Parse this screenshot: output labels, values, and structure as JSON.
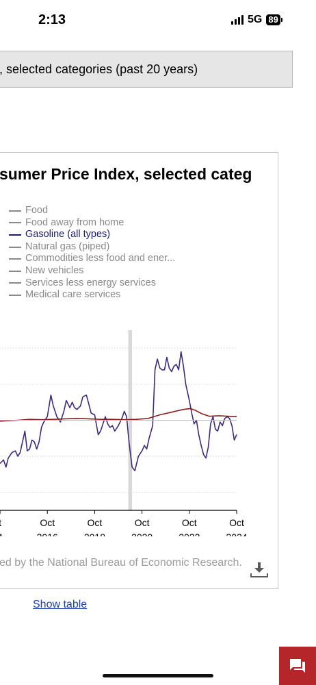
{
  "status": {
    "time": "2:13",
    "network": "5G",
    "battery": "89"
  },
  "header": {
    "title": ", selected categories (past 20 years)"
  },
  "chart_data": {
    "type": "line",
    "title": "sumer Price Index, selected categ",
    "legend": [
      {
        "name": "Food",
        "active": false
      },
      {
        "name": "Food away from home",
        "active": false
      },
      {
        "name": "Gasoline (all types)",
        "active": true
      },
      {
        "name": "Natural gas (piped)",
        "active": false
      },
      {
        "name": "Commodities less food and ener...",
        "active": false
      },
      {
        "name": "New vehicles",
        "active": false
      },
      {
        "name": "Services less energy services",
        "active": false
      },
      {
        "name": "Medical care services",
        "active": false
      }
    ],
    "x_ticks": [
      {
        "x": 2014.75,
        "month": "t",
        "year": "4"
      },
      {
        "x": 2016.75,
        "month": "Oct",
        "year": "2016"
      },
      {
        "x": 2018.75,
        "month": "Oct",
        "year": "2018"
      },
      {
        "x": 2020.75,
        "month": "Oct",
        "year": "2020"
      },
      {
        "x": 2022.75,
        "month": "Oct",
        "year": "2022"
      },
      {
        "x": 2024.75,
        "month": "Oct",
        "year": "2024"
      }
    ],
    "xlim": [
      2014.72,
      2024.75
    ],
    "ylim": [
      -50,
      50
    ],
    "gridlines_y": [
      -40,
      -20,
      0,
      20,
      40
    ],
    "recession": {
      "start": 2020.17,
      "end": 2020.33
    },
    "series": [
      {
        "name": "Gasoline (all types)",
        "color": "#3d2a7a",
        "points": [
          [
            2014.75,
            -24
          ],
          [
            2014.9,
            -22
          ],
          [
            2015.0,
            -26
          ],
          [
            2015.1,
            -21
          ],
          [
            2015.25,
            -18
          ],
          [
            2015.4,
            -17
          ],
          [
            2015.5,
            -20
          ],
          [
            2015.6,
            -18
          ],
          [
            2015.7,
            -12
          ],
          [
            2015.8,
            -6
          ],
          [
            2015.9,
            -17
          ],
          [
            2016.0,
            -16
          ],
          [
            2016.1,
            -11
          ],
          [
            2016.2,
            -12
          ],
          [
            2016.3,
            -16
          ],
          [
            2016.4,
            -12
          ],
          [
            2016.5,
            -4
          ],
          [
            2016.6,
            -1
          ],
          [
            2016.75,
            2
          ],
          [
            2016.9,
            14
          ],
          [
            2017.0,
            8
          ],
          [
            2017.15,
            2
          ],
          [
            2017.3,
            -1
          ],
          [
            2017.45,
            5
          ],
          [
            2017.55,
            11
          ],
          [
            2017.7,
            7
          ],
          [
            2017.8,
            10
          ],
          [
            2017.9,
            7
          ],
          [
            2018.0,
            6
          ],
          [
            2018.15,
            8
          ],
          [
            2018.25,
            13
          ],
          [
            2018.4,
            14
          ],
          [
            2018.5,
            9
          ],
          [
            2018.6,
            4
          ],
          [
            2018.75,
            3
          ],
          [
            2018.9,
            -8
          ],
          [
            2019.0,
            -6
          ],
          [
            2019.1,
            -2
          ],
          [
            2019.2,
            2
          ],
          [
            2019.3,
            -2
          ],
          [
            2019.4,
            -4
          ],
          [
            2019.5,
            -3
          ],
          [
            2019.6,
            -6
          ],
          [
            2019.75,
            -3
          ],
          [
            2019.9,
            1
          ],
          [
            2020.0,
            5
          ],
          [
            2020.1,
            2
          ],
          [
            2020.2,
            -12
          ],
          [
            2020.33,
            -26
          ],
          [
            2020.45,
            -28
          ],
          [
            2020.6,
            -20
          ],
          [
            2020.75,
            -17
          ],
          [
            2020.85,
            -14
          ],
          [
            2020.95,
            -16
          ],
          [
            2021.05,
            -10
          ],
          [
            2021.2,
            -3
          ],
          [
            2021.3,
            28
          ],
          [
            2021.4,
            34
          ],
          [
            2021.5,
            29
          ],
          [
            2021.6,
            28
          ],
          [
            2021.7,
            28
          ],
          [
            2021.8,
            35
          ],
          [
            2021.9,
            29
          ],
          [
            2022.0,
            27
          ],
          [
            2022.1,
            30
          ],
          [
            2022.2,
            31
          ],
          [
            2022.3,
            28
          ],
          [
            2022.4,
            38
          ],
          [
            2022.5,
            30
          ],
          [
            2022.6,
            20
          ],
          [
            2022.75,
            11
          ],
          [
            2022.85,
            4
          ],
          [
            2022.95,
            -2
          ],
          [
            2023.05,
            0
          ],
          [
            2023.15,
            -8
          ],
          [
            2023.25,
            -14
          ],
          [
            2023.35,
            -19
          ],
          [
            2023.45,
            -21
          ],
          [
            2023.55,
            -15
          ],
          [
            2023.65,
            -2
          ],
          [
            2023.75,
            2
          ],
          [
            2023.85,
            -5
          ],
          [
            2023.95,
            -6
          ],
          [
            2024.05,
            -1
          ],
          [
            2024.15,
            -3
          ],
          [
            2024.25,
            1
          ],
          [
            2024.35,
            2
          ],
          [
            2024.45,
            1
          ],
          [
            2024.55,
            -3
          ],
          [
            2024.65,
            -11
          ],
          [
            2024.75,
            -8
          ]
        ]
      },
      {
        "name": "",
        "color": "#8b1a1a",
        "points": [
          [
            2014.75,
            -0.5
          ],
          [
            2015.5,
            0
          ],
          [
            2016.0,
            0.5
          ],
          [
            2016.5,
            0.3
          ],
          [
            2017.0,
            0.5
          ],
          [
            2017.5,
            0.8
          ],
          [
            2018.0,
            1
          ],
          [
            2018.5,
            0.8
          ],
          [
            2019.0,
            0.5
          ],
          [
            2019.5,
            0.5
          ],
          [
            2020.0,
            0.3
          ],
          [
            2020.5,
            0.5
          ],
          [
            2021.0,
            1
          ],
          [
            2021.5,
            3
          ],
          [
            2022.0,
            4.5
          ],
          [
            2022.5,
            6
          ],
          [
            2022.8,
            6.5
          ],
          [
            2023.0,
            5.5
          ],
          [
            2023.3,
            3.5
          ],
          [
            2023.6,
            2.2
          ],
          [
            2024.0,
            2.5
          ],
          [
            2024.4,
            2.2
          ],
          [
            2024.75,
            2
          ]
        ]
      },
      {
        "name": "",
        "color": "#bcbcbc",
        "points": [
          [
            2014.75,
            0
          ],
          [
            2024.75,
            0
          ]
        ]
      }
    ],
    "source_note": "ed by the National Bureau of Economic Research."
  },
  "links": {
    "show_table": "Show table"
  }
}
